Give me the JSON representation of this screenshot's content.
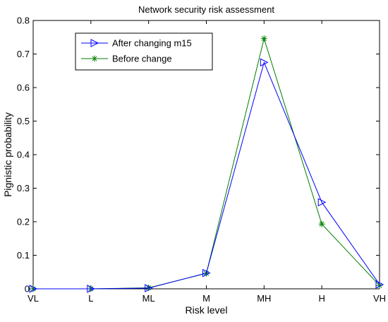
{
  "chart_data": {
    "type": "line",
    "title": "Network security risk assessment",
    "xlabel": "Risk level",
    "ylabel": "Pignistic probability",
    "categories": [
      "VL",
      "L",
      "ML",
      "M",
      "MH",
      "H",
      "VH"
    ],
    "ylim": [
      0,
      0.8
    ],
    "yticks": [
      "0",
      "0.1",
      "0.2",
      "0.3",
      "0.4",
      "0.5",
      "0.6",
      "0.7",
      "0.8"
    ],
    "grid": false,
    "legend_position": "top-left",
    "series": [
      {
        "name": "After changing m15",
        "color": "#0000ff",
        "marker": "triangle-right",
        "values": [
          0,
          0,
          0.002,
          0.047,
          0.675,
          0.258,
          0.013
        ]
      },
      {
        "name": "Before change",
        "color": "#008000",
        "marker": "asterisk",
        "values": [
          0,
          0,
          0.003,
          0.046,
          0.746,
          0.193,
          0.01
        ]
      }
    ]
  }
}
